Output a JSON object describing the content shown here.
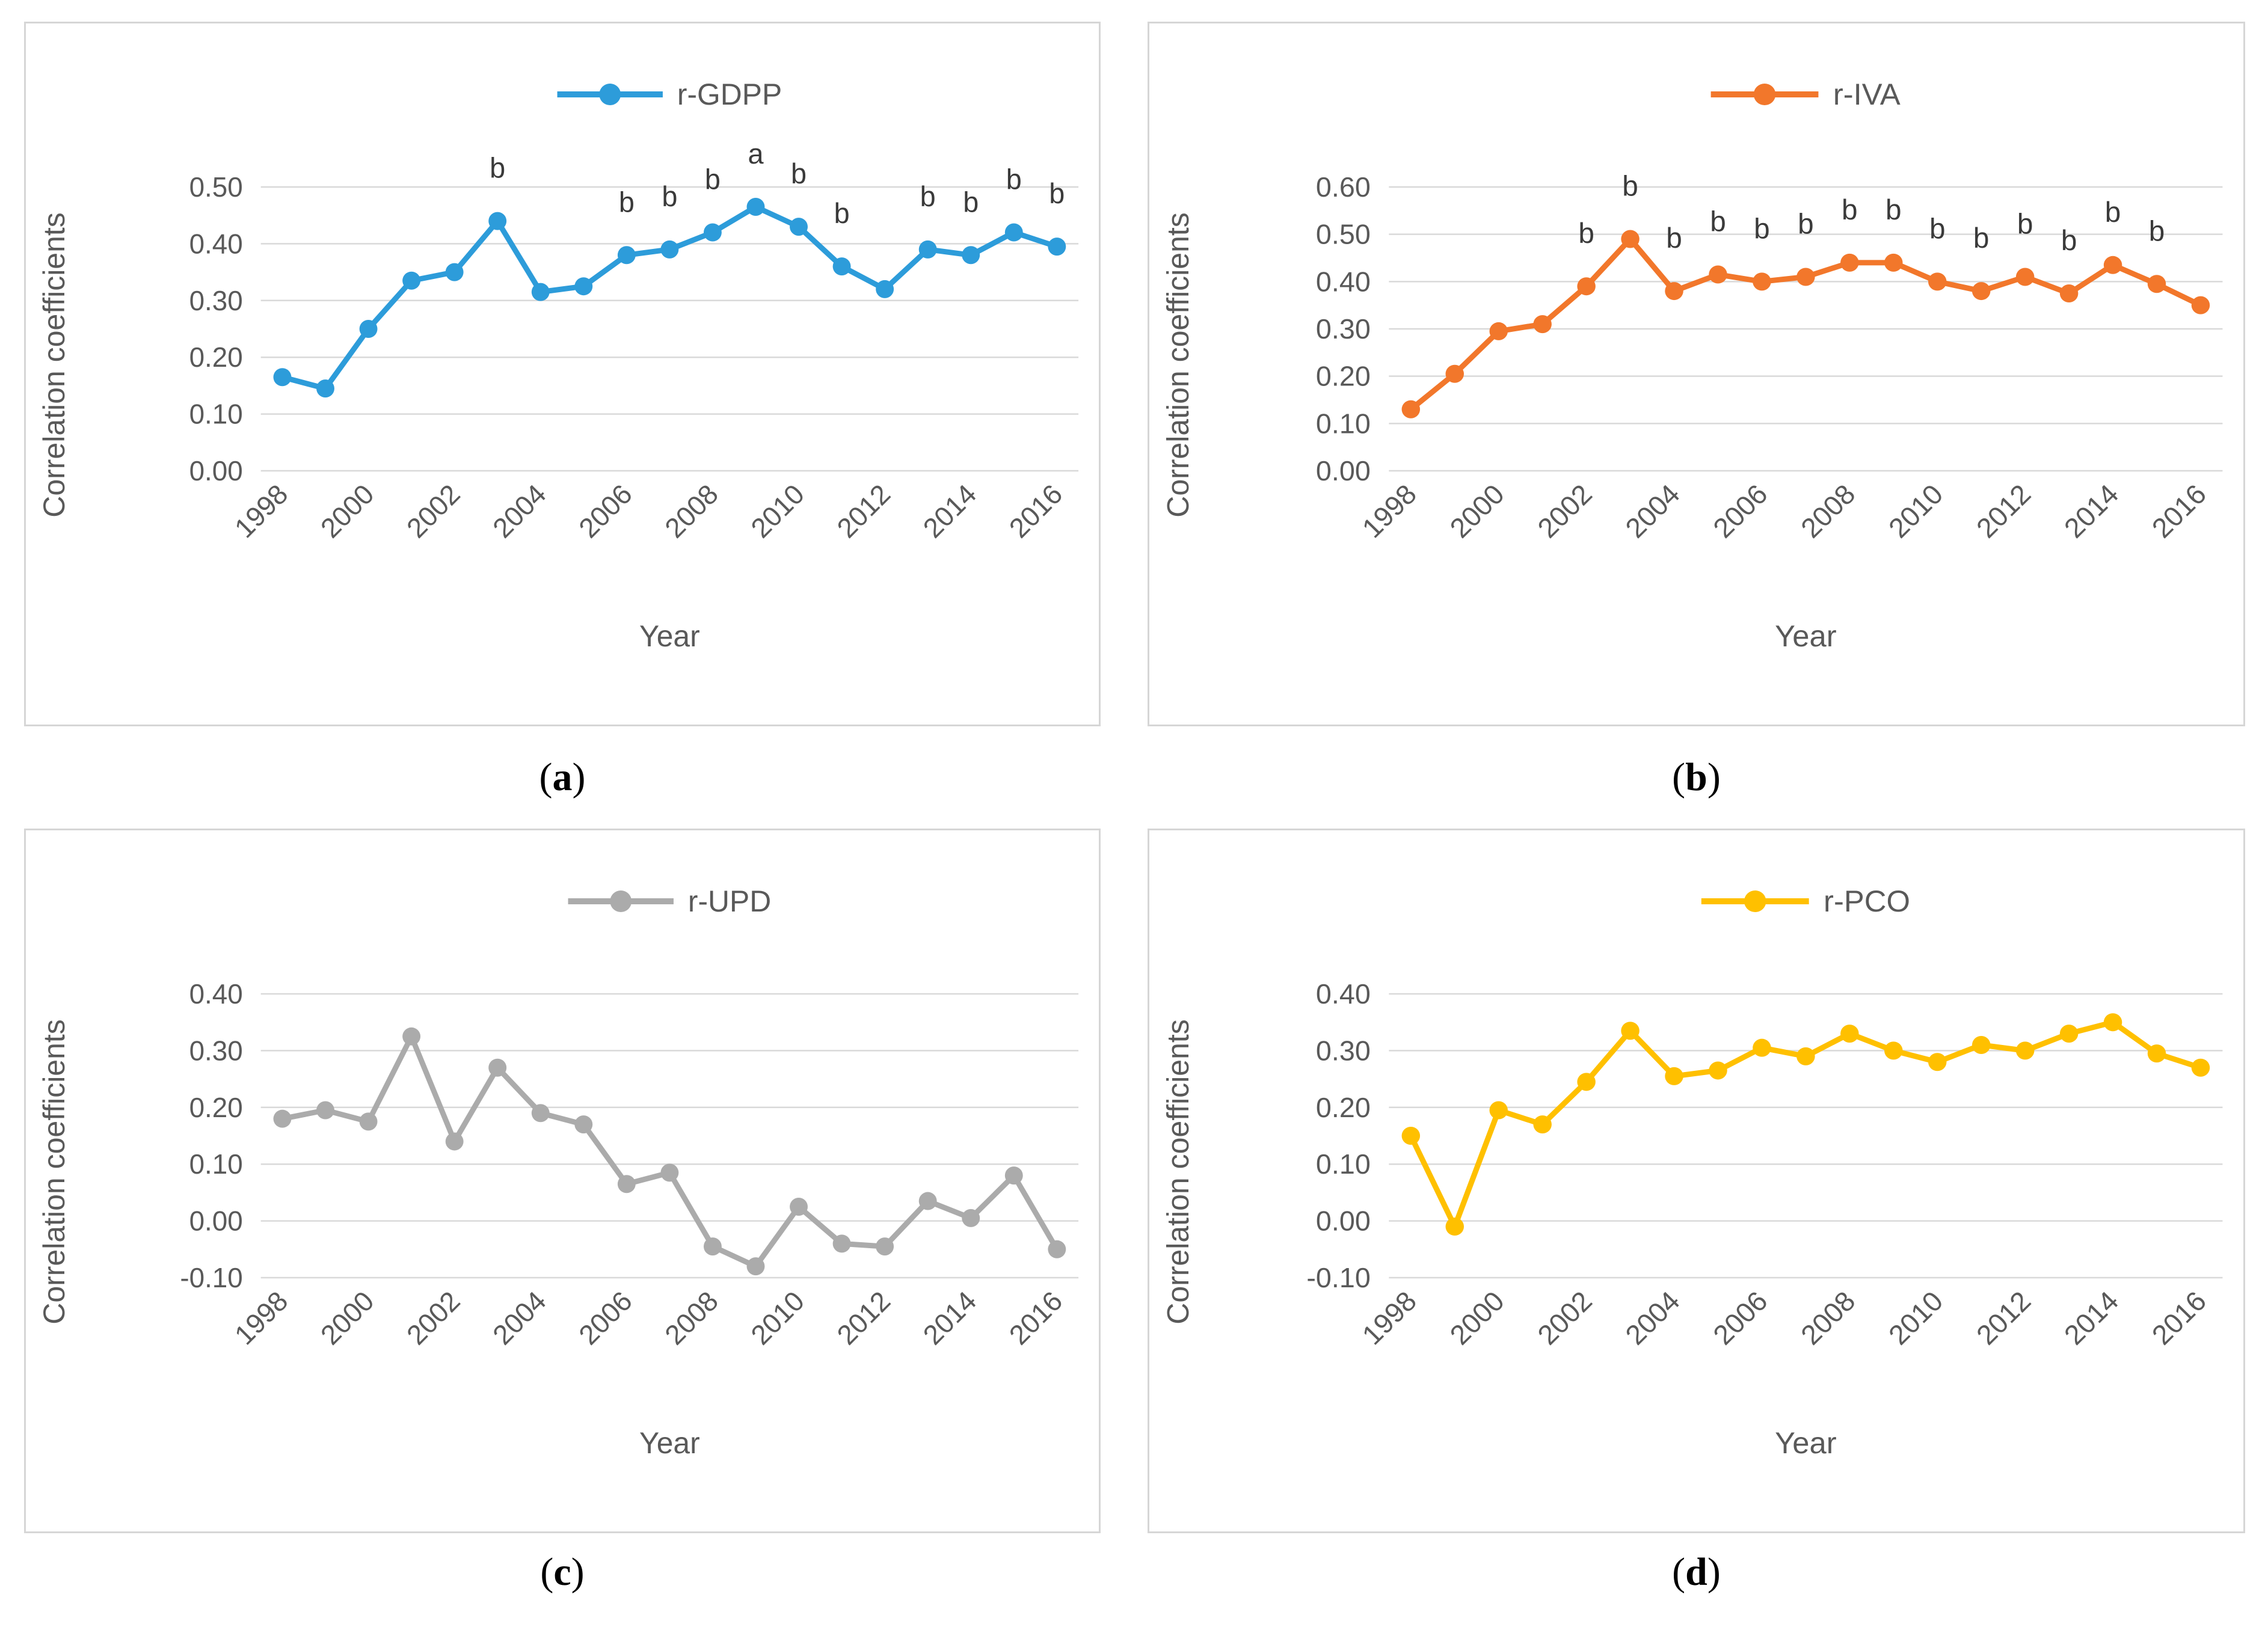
{
  "figure": {
    "caption_open": "(",
    "caption_close": ")"
  },
  "colors": {
    "axis_text": "#595959",
    "grid_line": "#D9D9D9",
    "annotation_text": "#3A3A3A",
    "panel_border": "#D6D6D6",
    "caption_text": "#000000"
  },
  "chart_data": [
    {
      "type": "line",
      "panel_letter": "a",
      "legend": "r-GDPP",
      "color": "#2D9CDA",
      "xlabel": "Year",
      "ylabel": "Correlation coefficients",
      "x": [
        1998,
        1999,
        2000,
        2001,
        2002,
        2003,
        2004,
        2005,
        2006,
        2007,
        2008,
        2009,
        2010,
        2011,
        2012,
        2013,
        2014,
        2015,
        2016
      ],
      "xticks": [
        1998,
        2000,
        2002,
        2004,
        2006,
        2008,
        2010,
        2012,
        2014,
        2016
      ],
      "yticks": [
        0.0,
        0.1,
        0.2,
        0.3,
        0.4,
        0.5
      ],
      "ylim": [
        0.0,
        0.5
      ],
      "grid": true,
      "legend_position": "top-center",
      "values": [
        0.165,
        0.145,
        0.25,
        0.335,
        0.35,
        0.44,
        0.315,
        0.325,
        0.38,
        0.39,
        0.42,
        0.465,
        0.43,
        0.36,
        0.32,
        0.39,
        0.38,
        0.42,
        0.395
      ],
      "annotations": [
        {
          "year": 2003,
          "text": "b"
        },
        {
          "year": 2006,
          "text": "b"
        },
        {
          "year": 2007,
          "text": "b"
        },
        {
          "year": 2008,
          "text": "b"
        },
        {
          "year": 2009,
          "text": "a"
        },
        {
          "year": 2010,
          "text": "b"
        },
        {
          "year": 2011,
          "text": "b"
        },
        {
          "year": 2013,
          "text": "b"
        },
        {
          "year": 2014,
          "text": "b"
        },
        {
          "year": 2015,
          "text": "b"
        },
        {
          "year": 2016,
          "text": "b"
        }
      ]
    },
    {
      "type": "line",
      "panel_letter": "b",
      "legend": "r-IVA",
      "color": "#F2772B",
      "xlabel": "Year",
      "ylabel": "Correlation coefficients",
      "x": [
        1998,
        1999,
        2000,
        2001,
        2002,
        2003,
        2004,
        2005,
        2006,
        2007,
        2008,
        2009,
        2010,
        2011,
        2012,
        2013,
        2014,
        2015,
        2016
      ],
      "xticks": [
        1998,
        2000,
        2002,
        2004,
        2006,
        2008,
        2010,
        2012,
        2014,
        2016
      ],
      "yticks": [
        0.0,
        0.1,
        0.2,
        0.3,
        0.4,
        0.5,
        0.6
      ],
      "ylim": [
        0.0,
        0.6
      ],
      "grid": true,
      "legend_position": "top-center",
      "values": [
        0.13,
        0.205,
        0.295,
        0.31,
        0.39,
        0.49,
        0.38,
        0.415,
        0.4,
        0.41,
        0.44,
        0.44,
        0.4,
        0.38,
        0.41,
        0.375,
        0.435,
        0.395,
        0.35
      ],
      "annotations": [
        {
          "year": 2002,
          "text": "b"
        },
        {
          "year": 2003,
          "text": "b"
        },
        {
          "year": 2004,
          "text": "b"
        },
        {
          "year": 2005,
          "text": "b"
        },
        {
          "year": 2006,
          "text": "b"
        },
        {
          "year": 2007,
          "text": "b"
        },
        {
          "year": 2008,
          "text": "b"
        },
        {
          "year": 2009,
          "text": "b"
        },
        {
          "year": 2010,
          "text": "b"
        },
        {
          "year": 2011,
          "text": "b"
        },
        {
          "year": 2012,
          "text": "b"
        },
        {
          "year": 2013,
          "text": "b"
        },
        {
          "year": 2014,
          "text": "b"
        },
        {
          "year": 2015,
          "text": "b"
        }
      ]
    },
    {
      "type": "line",
      "panel_letter": "c",
      "legend": "r-UPD",
      "color": "#ABABAB",
      "xlabel": "Year",
      "ylabel": "Correlation coefficients",
      "x": [
        1998,
        1999,
        2000,
        2001,
        2002,
        2003,
        2004,
        2005,
        2006,
        2007,
        2008,
        2009,
        2010,
        2011,
        2012,
        2013,
        2014,
        2015,
        2016
      ],
      "xticks": [
        1998,
        2000,
        2002,
        2004,
        2006,
        2008,
        2010,
        2012,
        2014,
        2016
      ],
      "yticks": [
        -0.1,
        0.0,
        0.1,
        0.2,
        0.3,
        0.4
      ],
      "ylim": [
        -0.1,
        0.4
      ],
      "grid": true,
      "legend_position": "top-center",
      "values": [
        0.18,
        0.195,
        0.175,
        0.325,
        0.14,
        0.27,
        0.19,
        0.17,
        0.065,
        0.085,
        -0.045,
        -0.08,
        0.025,
        -0.04,
        -0.045,
        0.035,
        0.005,
        0.08,
        -0.05
      ],
      "annotations": []
    },
    {
      "type": "line",
      "panel_letter": "d",
      "legend": "r-PCO",
      "color": "#FFC000",
      "xlabel": "Year",
      "ylabel": "Correlation coefficients",
      "x": [
        1998,
        1999,
        2000,
        2001,
        2002,
        2003,
        2004,
        2005,
        2006,
        2007,
        2008,
        2009,
        2010,
        2011,
        2012,
        2013,
        2014,
        2015,
        2016
      ],
      "xticks": [
        1998,
        2000,
        2002,
        2004,
        2006,
        2008,
        2010,
        2012,
        2014,
        2016
      ],
      "yticks": [
        -0.1,
        0.0,
        0.1,
        0.2,
        0.3,
        0.4
      ],
      "ylim": [
        -0.1,
        0.4
      ],
      "grid": true,
      "legend_position": "top-center",
      "values": [
        0.15,
        -0.01,
        0.195,
        0.17,
        0.245,
        0.335,
        0.255,
        0.265,
        0.305,
        0.29,
        0.33,
        0.3,
        0.28,
        0.31,
        0.3,
        0.33,
        0.35,
        0.295,
        0.27
      ],
      "annotations": []
    }
  ]
}
